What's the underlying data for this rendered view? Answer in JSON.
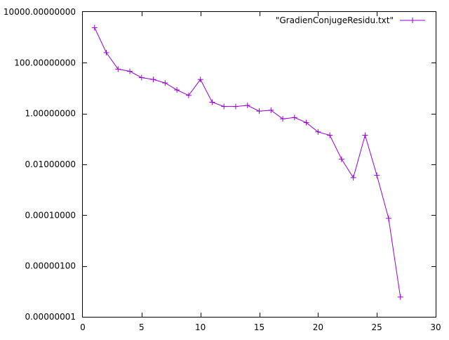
{
  "chart_data": {
    "type": "line",
    "title": "",
    "xlabel": "",
    "ylabel": "",
    "xlim": [
      0,
      30
    ],
    "ylim": [
      1e-08,
      10000
    ],
    "y_scale": "log",
    "grid": false,
    "legend_position": "top-right",
    "x_ticks": [
      0,
      5,
      10,
      15,
      20,
      25,
      30
    ],
    "x_tick_labels": [
      "0",
      "5",
      "10",
      "15",
      "20",
      "25",
      "30"
    ],
    "y_ticks": [
      10000,
      100,
      1,
      0.01,
      0.0001,
      1e-06,
      1e-08
    ],
    "y_tick_labels": [
      "10000.00000000",
      "100.00000000",
      "1.00000000",
      "0.01000000",
      "0.00010000",
      "0.00000100",
      "0.00000001"
    ],
    "series": [
      {
        "name": "\"GradienConjugeResidu.txt\"",
        "color": "#9400d3",
        "marker": "plus",
        "x": [
          1,
          2,
          3,
          4,
          5,
          6,
          7,
          8,
          9,
          10,
          11,
          12,
          13,
          14,
          15,
          16,
          17,
          18,
          19,
          20,
          21,
          22,
          23,
          24,
          25,
          26,
          27
        ],
        "y": [
          2400,
          250,
          56,
          46,
          26,
          22,
          16,
          8.5,
          5.2,
          22,
          2.8,
          1.9,
          1.9,
          2.1,
          1.25,
          1.35,
          0.62,
          0.7,
          0.44,
          0.19,
          0.14,
          0.016,
          0.003,
          0.14,
          0.0037,
          7.5e-05,
          6e-08
        ]
      }
    ]
  }
}
